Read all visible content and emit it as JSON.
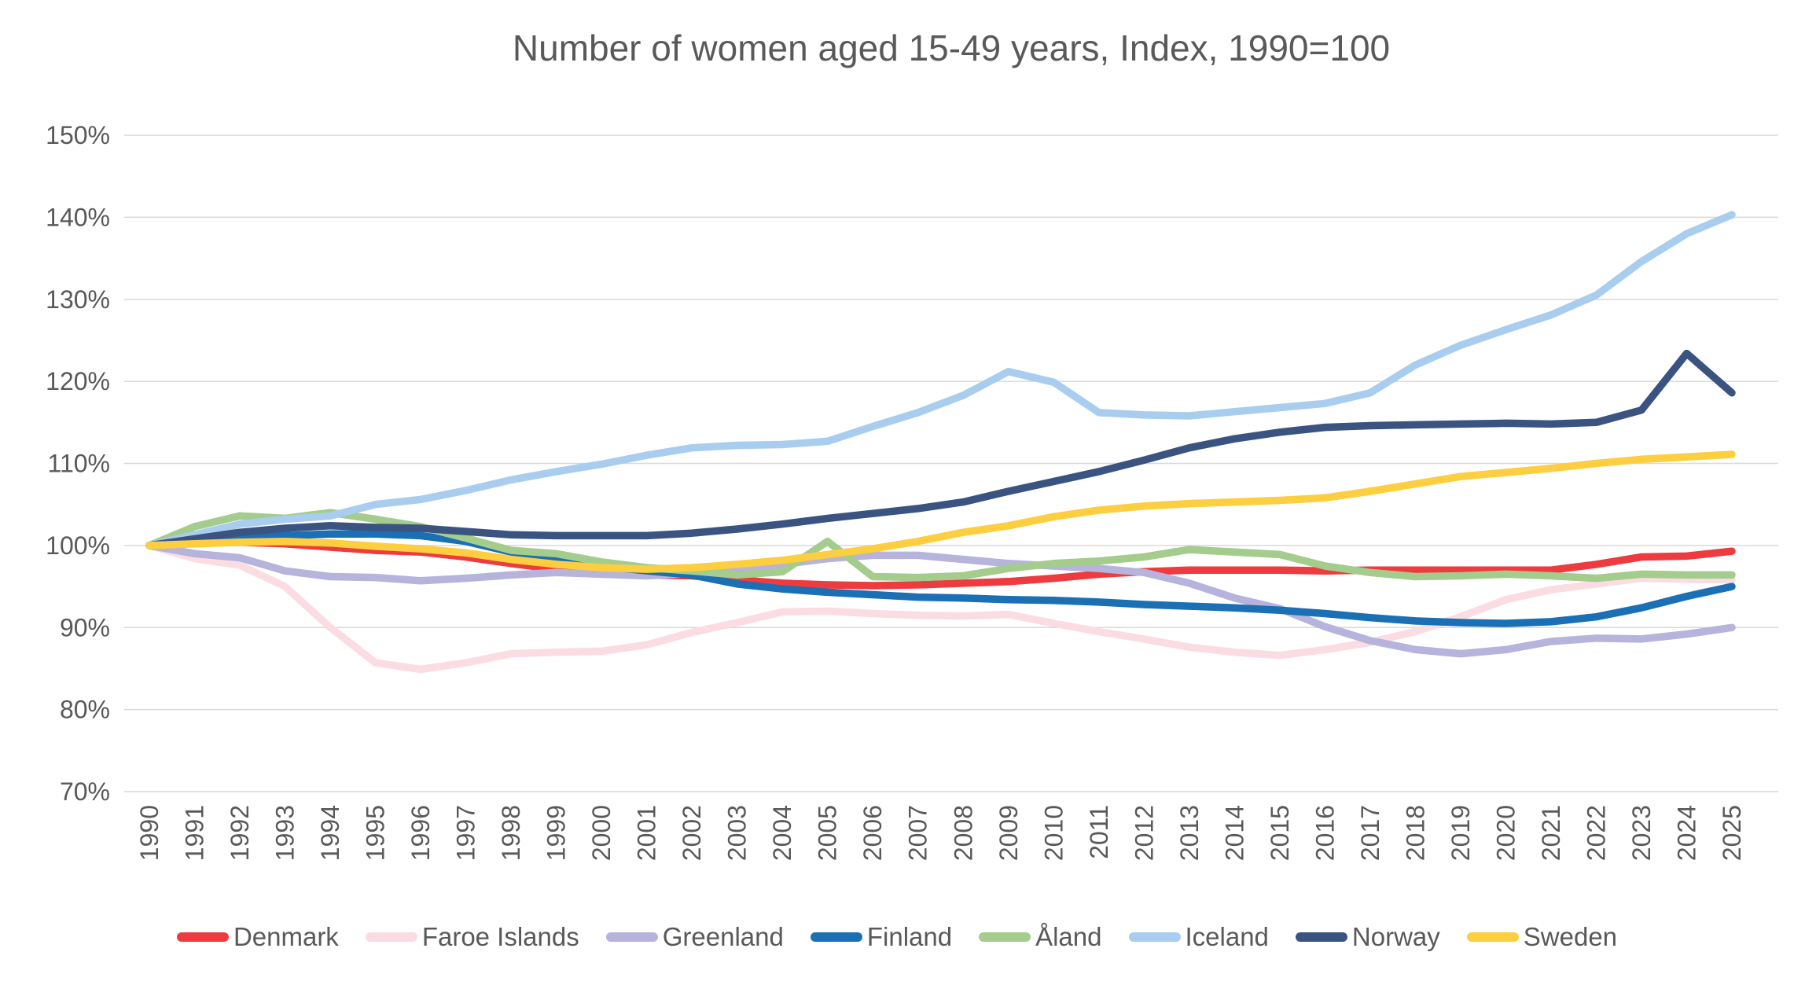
{
  "chart_data": {
    "type": "line",
    "title": "Number of women aged 15-49 years, Index, 1990=100",
    "xlabel": "",
    "ylabel": "",
    "ylim": [
      70,
      150
    ],
    "grid": true,
    "legend_position": "bottom",
    "y_tick_values": [
      150,
      140,
      130,
      120,
      110,
      100,
      90,
      80,
      70
    ],
    "y_tick_labels": [
      "150%",
      "140%",
      "130%",
      "120%",
      "110%",
      "100%",
      "90%",
      "80%",
      "70%"
    ],
    "x": [
      1990,
      1991,
      1992,
      1993,
      1994,
      1995,
      1996,
      1997,
      1998,
      1999,
      2000,
      2001,
      2002,
      2003,
      2004,
      2005,
      2006,
      2007,
      2008,
      2009,
      2010,
      2011,
      2012,
      2013,
      2014,
      2015,
      2016,
      2017,
      2018,
      2019,
      2020,
      2021,
      2022,
      2023,
      2024,
      2025
    ],
    "series": [
      {
        "name": "Denmark",
        "color": "#ED3B40",
        "values": [
          100,
          100.3,
          100.4,
          100.2,
          99.8,
          99.4,
          99.2,
          98.6,
          97.8,
          97.1,
          96.6,
          96.4,
          96.3,
          95.8,
          95.4,
          95.2,
          95.1,
          95.2,
          95.4,
          95.6,
          96.0,
          96.5,
          96.8,
          97.0,
          97.0,
          97.0,
          96.9,
          97.0,
          97.0,
          97.0,
          97.0,
          97.0,
          97.7,
          98.6,
          98.7,
          99.3
        ]
      },
      {
        "name": "Faroe Islands",
        "color": "#FBDCE3",
        "values": [
          100,
          98.4,
          97.6,
          95.0,
          90.0,
          85.7,
          84.9,
          85.7,
          86.8,
          87.0,
          87.1,
          87.9,
          89.4,
          90.6,
          91.9,
          92.0,
          91.7,
          91.5,
          91.4,
          91.6,
          90.5,
          89.5,
          88.6,
          87.6,
          87.0,
          86.6,
          87.3,
          88.2,
          89.5,
          91.3,
          93.4,
          94.6,
          95.3,
          96.0,
          95.9,
          95.8
        ]
      },
      {
        "name": "Greenland",
        "color": "#B6B3DC",
        "values": [
          100,
          99.0,
          98.5,
          96.9,
          96.2,
          96.1,
          95.7,
          96.0,
          96.4,
          96.7,
          96.5,
          96.3,
          96.6,
          97.1,
          97.7,
          98.4,
          98.8,
          98.8,
          98.3,
          97.8,
          97.5,
          97.2,
          96.7,
          95.4,
          93.6,
          92.3,
          90.1,
          88.4,
          87.3,
          86.8,
          87.3,
          88.3,
          88.7,
          88.6,
          89.2,
          90.0
        ]
      },
      {
        "name": "Finland",
        "color": "#1A6FB5",
        "values": [
          100,
          100.4,
          100.8,
          101.2,
          101.4,
          101.4,
          101.2,
          100.5,
          99.2,
          98.3,
          97.5,
          96.9,
          96.4,
          95.3,
          94.7,
          94.3,
          94.0,
          93.7,
          93.6,
          93.4,
          93.3,
          93.1,
          92.8,
          92.6,
          92.4,
          92.1,
          91.7,
          91.2,
          90.8,
          90.6,
          90.5,
          90.7,
          91.3,
          92.4,
          93.8,
          95.0
        ]
      },
      {
        "name": "Åland",
        "color": "#A3CC8D",
        "values": [
          100,
          102.3,
          103.6,
          103.3,
          104.0,
          103.2,
          102.3,
          100.9,
          99.4,
          99.0,
          98.0,
          97.3,
          96.9,
          96.4,
          96.8,
          100.5,
          96.2,
          96.1,
          96.3,
          97.2,
          97.8,
          98.1,
          98.6,
          99.5,
          99.2,
          98.9,
          97.5,
          96.7,
          96.2,
          96.3,
          96.5,
          96.3,
          96.0,
          96.5,
          96.4,
          96.4
        ]
      },
      {
        "name": "Iceland",
        "color": "#A9CDEF",
        "values": [
          100,
          101.3,
          102.6,
          103.2,
          103.6,
          105.0,
          105.6,
          106.7,
          108.0,
          109.0,
          109.9,
          111.0,
          111.9,
          112.2,
          112.3,
          112.7,
          114.5,
          116.2,
          118.3,
          121.2,
          119.9,
          116.2,
          115.9,
          115.8,
          116.3,
          116.8,
          117.3,
          118.6,
          122.0,
          124.4,
          126.3,
          128.1,
          130.5,
          134.6,
          138.0,
          140.3
        ]
      },
      {
        "name": "Norway",
        "color": "#3A5381",
        "values": [
          100,
          100.8,
          101.6,
          102.1,
          102.4,
          102.2,
          102.1,
          101.7,
          101.3,
          101.2,
          101.2,
          101.2,
          101.5,
          102.0,
          102.6,
          103.3,
          103.9,
          104.5,
          105.3,
          106.6,
          107.8,
          109.0,
          110.4,
          111.9,
          113.0,
          113.8,
          114.4,
          114.6,
          114.7,
          114.8,
          114.9,
          114.8,
          115.0,
          116.5,
          123.4,
          118.6
        ]
      },
      {
        "name": "Sweden",
        "color": "#FCCE40",
        "values": [
          100,
          100.2,
          100.4,
          100.5,
          100.3,
          99.9,
          99.6,
          99.1,
          98.3,
          97.7,
          97.3,
          97.1,
          97.3,
          97.7,
          98.2,
          98.9,
          99.6,
          100.5,
          101.6,
          102.4,
          103.5,
          104.3,
          104.8,
          105.1,
          105.3,
          105.5,
          105.8,
          106.6,
          107.5,
          108.4,
          108.9,
          109.4,
          110.0,
          110.5,
          110.8,
          111.1
        ]
      }
    ]
  },
  "style": {
    "text_color": "#595959",
    "grid_color": "#D9D9D9",
    "background": "#FFFFFF"
  }
}
